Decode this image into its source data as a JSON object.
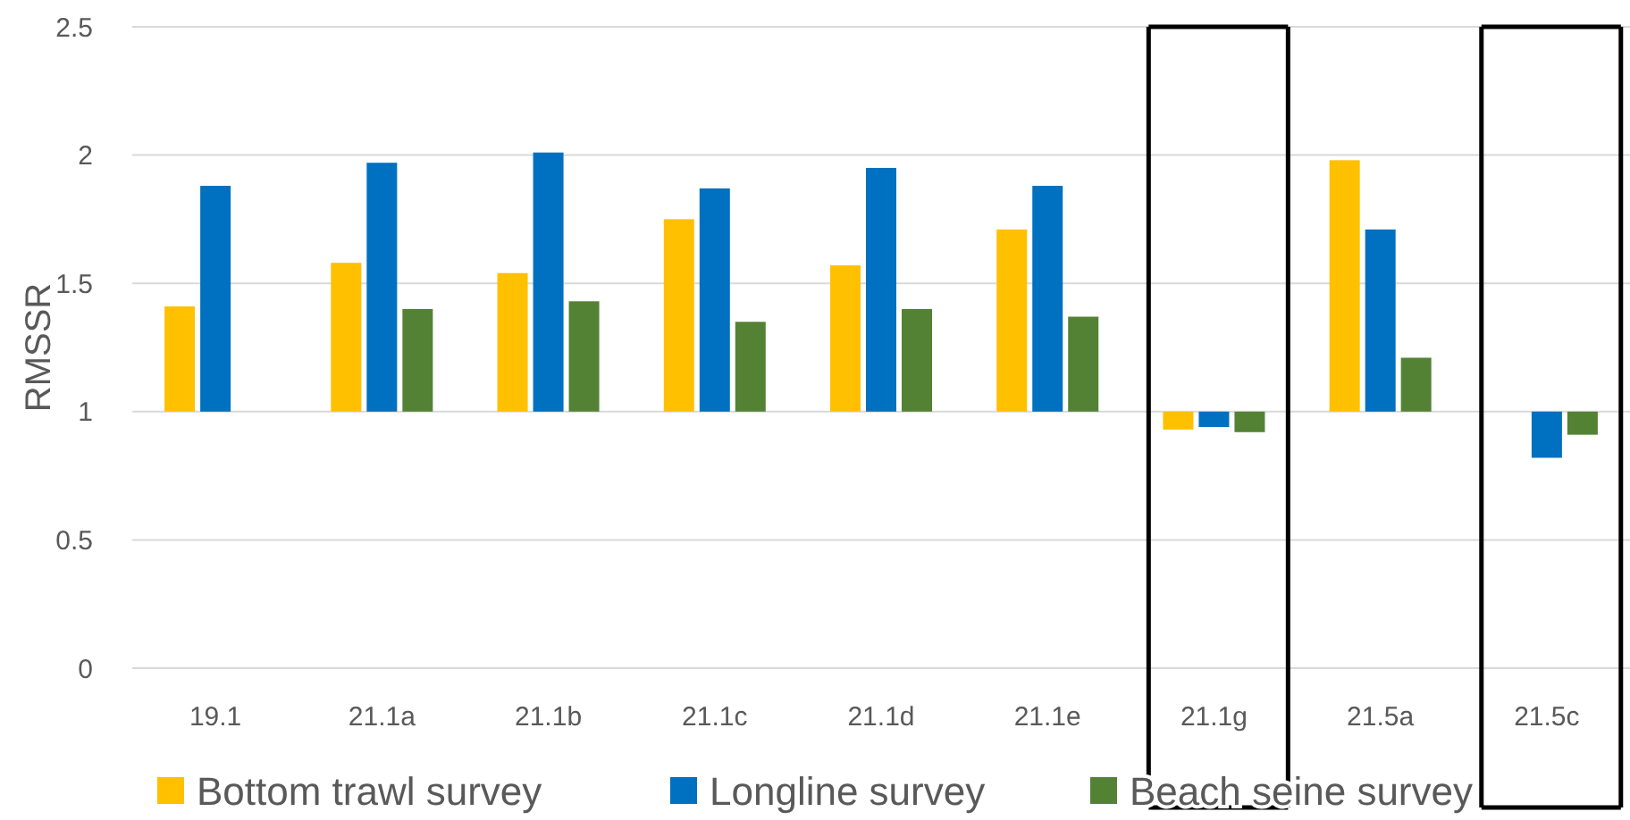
{
  "chart_data": {
    "type": "bar",
    "ylabel": "RMSSR",
    "categories": [
      "19.1",
      "21.1a",
      "21.1b",
      "21.1c",
      "21.1d",
      "21.1e",
      "21.1g",
      "21.5a",
      "21.5c"
    ],
    "series": [
      {
        "name": "Bottom trawl survey",
        "color": "#ffc000",
        "base": [
          1,
          1,
          1,
          1,
          1,
          1,
          1,
          1,
          null
        ],
        "values": [
          0.41,
          0.58,
          0.54,
          0.75,
          0.57,
          0.71,
          -0.07,
          0.98,
          null
        ]
      },
      {
        "name": "Longline survey",
        "color": "#0070c0",
        "base": [
          1,
          1,
          1,
          1,
          1,
          1,
          1,
          1,
          1
        ],
        "values": [
          0.88,
          0.97,
          1.01,
          0.87,
          0.95,
          0.88,
          -0.06,
          0.71,
          -0.18
        ]
      },
      {
        "name": "Beach seine survey",
        "color": "#548235",
        "base": [
          null,
          1,
          1,
          1,
          1,
          1,
          1,
          1,
          1
        ],
        "values": [
          null,
          0.4,
          0.43,
          0.35,
          0.4,
          0.37,
          -0.08,
          0.21,
          -0.09
        ]
      }
    ],
    "ylim": [
      0,
      2.5
    ],
    "yticks": [
      0,
      0.5,
      1,
      1.5,
      2,
      2.5
    ],
    "grid": "y",
    "legend": "bottom"
  }
}
